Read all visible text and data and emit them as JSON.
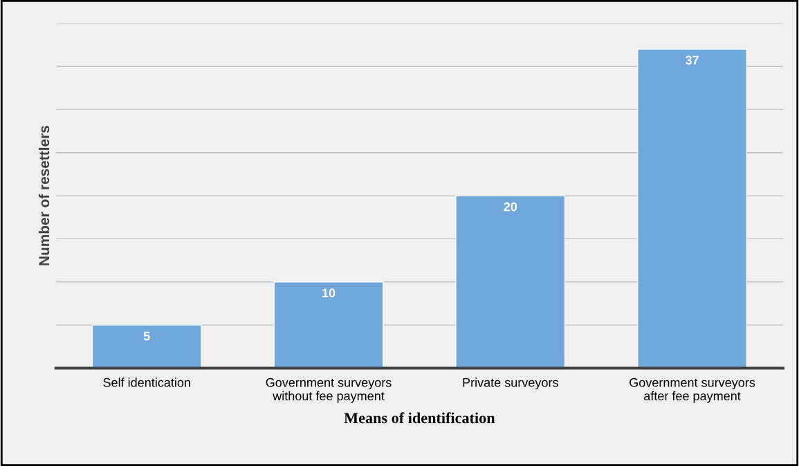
{
  "chart_data": {
    "type": "bar",
    "xlabel": "Means of identification",
    "ylabel": "Number of resettlers",
    "categories": [
      "Self identication",
      "Government surveyors\nwithout fee payment",
      "Private surveyors",
      "Government surveyors\nafter fee payment"
    ],
    "values": [
      5,
      10,
      20,
      37
    ],
    "color": "#6fa7da",
    "data_labels": true,
    "ylim": [
      0,
      40
    ],
    "yticks": [
      {
        "value": 0,
        "label": null
      },
      {
        "value": 5,
        "label": null
      },
      {
        "value": 10,
        "label": null
      },
      {
        "value": 15,
        "label": null
      },
      {
        "value": 20,
        "label": null
      },
      {
        "value": 25,
        "label": null
      },
      {
        "value": 30,
        "label": null
      },
      {
        "value": 35,
        "label": null
      },
      {
        "value": 40,
        "label": null
      }
    ],
    "tick_labels": "x",
    "grid": "y"
  }
}
